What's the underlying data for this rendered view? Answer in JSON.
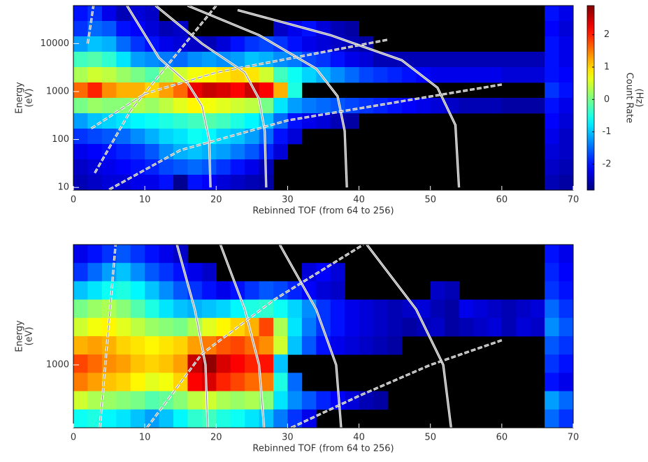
{
  "chart_data": [
    {
      "type": "heatmap",
      "xlabel": "Rebinned TOF (from 64 to 256)",
      "ylabel": [
        "Energy",
        "(eV)"
      ],
      "xlim": [
        0,
        70
      ],
      "xticks": [
        0,
        10,
        20,
        30,
        40,
        50,
        60,
        70
      ],
      "ylim": [
        8.8,
        62000
      ],
      "yticks": [
        10,
        100,
        1000,
        10000
      ],
      "ylog": true,
      "colorbar": {
        "label": [
          "Count Rate",
          "(Hz)"
        ],
        "lim": [
          -2.8,
          2.9
        ],
        "ticks": [
          -2,
          -1,
          0,
          1,
          2
        ]
      },
      "z": [
        [
          -2,
          -1.8,
          -2.2,
          -2.5,
          -2.3,
          -2.4,
          null,
          null,
          null,
          null,
          null,
          null,
          null,
          null,
          null,
          null,
          null,
          null,
          null,
          null,
          null,
          null,
          null,
          null,
          null,
          null,
          null,
          null,
          null,
          null,
          null,
          null,
          null,
          -2,
          -2.2
        ],
        [
          -1.8,
          -1.5,
          -1.6,
          -2,
          -2.1,
          -2.3,
          -2.5,
          -2.4,
          null,
          null,
          null,
          null,
          null,
          null,
          -2.4,
          -2.2,
          -2,
          -2.3,
          -2.5,
          -2.6,
          null,
          null,
          null,
          null,
          null,
          null,
          null,
          null,
          null,
          null,
          null,
          null,
          null,
          -2.1,
          -2.3
        ],
        [
          -1.2,
          -1,
          -1.1,
          -1.5,
          -1.8,
          -2,
          -2.2,
          -2.3,
          -2.4,
          -2.5,
          -2.3,
          -2,
          -1.8,
          -1.7,
          -1.8,
          -2,
          -2.2,
          -2.3,
          -2.4,
          -2.5,
          -2.6,
          null,
          null,
          null,
          null,
          null,
          null,
          null,
          null,
          null,
          null,
          null,
          null,
          -2,
          -2.2
        ],
        [
          -0.3,
          -0.2,
          -0.4,
          -0.8,
          -1.2,
          -1.3,
          -1.4,
          -1.5,
          -1.3,
          -1.2,
          -1.3,
          -1.2,
          -1,
          -1.1,
          -1.3,
          -1.4,
          -1.7,
          -1.8,
          -2,
          -2.2,
          -2.3,
          -2.5,
          -2.5,
          -2.5,
          -2.5,
          -2.5,
          -2.5,
          -2.5,
          -2.5,
          -2.5,
          -2.5,
          -2.5,
          -2.5,
          -2,
          -2.2
        ],
        [
          0.3,
          0.5,
          0.4,
          0.2,
          0,
          -0.2,
          0.2,
          0.5,
          0.7,
          0.8,
          0.9,
          1,
          0.9,
          0.5,
          -0.3,
          -0.6,
          -0.9,
          -1.1,
          -1.3,
          -1.5,
          -1.7,
          -1.8,
          -1.9,
          -2,
          -2.1,
          -2.2,
          -2.2,
          -2.2,
          -2.2,
          -2.2,
          -2.3,
          -2.3,
          -2.3,
          -2,
          -2.1
        ],
        [
          1.6,
          2,
          1.4,
          1.2,
          1.2,
          1,
          1.3,
          1.6,
          2.3,
          2.5,
          2.4,
          2.2,
          2.5,
          2.2,
          1.2,
          -0.5,
          null,
          null,
          null,
          null,
          null,
          null,
          null,
          null,
          null,
          null,
          null,
          null,
          null,
          null,
          null,
          null,
          null,
          -1.8,
          -2
        ],
        [
          0,
          0.2,
          0.1,
          0.1,
          0.3,
          0.2,
          0.4,
          0.6,
          0.8,
          0.7,
          0.6,
          0.5,
          0.4,
          0,
          -0.8,
          -1.2,
          -1.4,
          -1.5,
          -1.6,
          -1.7,
          -1.8,
          -1.9,
          -2,
          -2.1,
          -2.2,
          -2.3,
          -2.4,
          -2.5,
          -2.5,
          -2.5,
          -2.6,
          -2.6,
          -2.6,
          -2,
          -2.2
        ],
        [
          -1.2,
          -1,
          -0.9,
          -0.8,
          -0.7,
          -0.6,
          -0.5,
          -0.4,
          -0.3,
          -0.2,
          -0.3,
          -0.5,
          -0.7,
          -1,
          -1.5,
          -2,
          -2.2,
          -2.3,
          -2.5,
          -2.6,
          null,
          null,
          null,
          null,
          null,
          null,
          null,
          null,
          null,
          null,
          null,
          null,
          null,
          -2.1,
          -2.3
        ],
        [
          -1.8,
          -1.7,
          -1.6,
          -1.5,
          -1.3,
          -1.1,
          -0.9,
          -0.8,
          -0.6,
          -0.7,
          -0.9,
          -1,
          -1.2,
          -1.5,
          -2,
          -2.3,
          null,
          null,
          null,
          null,
          null,
          null,
          null,
          null,
          null,
          null,
          null,
          null,
          null,
          null,
          null,
          null,
          null,
          -2.2,
          -2.4
        ],
        [
          -2.2,
          -2.1,
          -2,
          -1.9,
          -1.8,
          -1.6,
          -1.3,
          -1.1,
          -1,
          -1.1,
          -1.2,
          -1.4,
          -1.6,
          -1.9,
          -2.3,
          null,
          null,
          null,
          null,
          null,
          null,
          null,
          null,
          null,
          null,
          null,
          null,
          null,
          null,
          null,
          null,
          null,
          null,
          -2.3,
          -2.4
        ],
        [
          -2.4,
          -2.3,
          -2.2,
          -2.1,
          -2,
          -1.9,
          -1.7,
          -1.6,
          -1.5,
          -1.6,
          -1.8,
          -2,
          -2.2,
          -2.5,
          null,
          null,
          null,
          null,
          null,
          null,
          null,
          null,
          null,
          null,
          null,
          null,
          null,
          null,
          null,
          null,
          null,
          null,
          null,
          -2.4,
          -2.5
        ],
        [
          -2.5,
          -2.4,
          -2.3,
          -2.3,
          -2.2,
          -2.2,
          -2,
          -2.7,
          -2,
          -2.1,
          -2.3,
          -2.4,
          -2.5,
          -2.6,
          null,
          null,
          null,
          null,
          null,
          null,
          null,
          null,
          null,
          null,
          null,
          null,
          null,
          null,
          null,
          null,
          null,
          null,
          null,
          -2.5,
          -2.6
        ]
      ],
      "curves": [
        {
          "style": "solid",
          "x": [
            7.5,
            12,
            16,
            18,
            19,
            19.2
          ],
          "y": [
            62000,
            5000,
            1500,
            500,
            100,
            10
          ]
        },
        {
          "style": "solid",
          "x": [
            11.5,
            18,
            24,
            26,
            26.8,
            27
          ],
          "y": [
            62000,
            10000,
            2500,
            700,
            150,
            10
          ]
        },
        {
          "style": "solid",
          "x": [
            16,
            26,
            34,
            37,
            38,
            38.3
          ],
          "y": [
            62000,
            15000,
            3000,
            800,
            150,
            10
          ]
        },
        {
          "style": "solid",
          "x": [
            23,
            36,
            46,
            51,
            53.5,
            54
          ],
          "y": [
            50000,
            15000,
            4500,
            1200,
            200,
            10
          ]
        },
        {
          "style": "dashed",
          "x": [
            2,
            2.5,
            2.8
          ],
          "y": [
            10000,
            30000,
            62000
          ]
        },
        {
          "style": "dashed",
          "x": [
            3,
            8,
            14,
            20
          ],
          "y": [
            20,
            400,
            5000,
            62000
          ]
        },
        {
          "style": "dashed",
          "x": [
            2.5,
            10,
            20,
            44
          ],
          "y": [
            170,
            900,
            2500,
            12000
          ]
        },
        {
          "style": "dashed",
          "x": [
            5,
            15,
            30,
            60
          ],
          "y": [
            9,
            60,
            250,
            1400
          ]
        }
      ]
    },
    {
      "type": "heatmap",
      "xlabel": "Rebinned TOF (from 64 to 256)",
      "ylabel": [
        "Energy",
        "(eV)"
      ],
      "xlim": [
        0,
        70
      ],
      "xticks": [
        0,
        10,
        20,
        30,
        40,
        50,
        60,
        70
      ],
      "ylim": [
        355,
        7250
      ],
      "yticks": [
        1000
      ],
      "ylog": true,
      "z": [
        [
          -2.2,
          -2,
          -1.8,
          -1.6,
          -1.8,
          -2,
          -2.2,
          -2.4,
          null,
          null,
          null,
          null,
          null,
          null,
          null,
          null,
          null,
          null,
          null,
          null,
          null,
          null,
          null,
          null,
          null,
          null,
          null,
          null,
          null,
          null,
          null,
          null,
          null,
          -2,
          -2.2
        ],
        [
          -1.8,
          -1.5,
          -1.2,
          -1,
          -1.3,
          -1.6,
          -1.8,
          -2,
          -2.2,
          -2.4,
          null,
          null,
          null,
          null,
          null,
          null,
          -2.3,
          -2.1,
          -2.3,
          null,
          null,
          null,
          null,
          null,
          null,
          null,
          null,
          null,
          null,
          null,
          null,
          null,
          null,
          -1.9,
          -2.1
        ],
        [
          -1,
          -0.8,
          -0.6,
          -0.5,
          -0.7,
          -1,
          -1.3,
          -1.6,
          -1.8,
          -2,
          -2.2,
          -2,
          -1.8,
          -1.6,
          -1.7,
          -1.9,
          -2.1,
          -2.3,
          -2.4,
          null,
          null,
          null,
          null,
          null,
          null,
          -2.4,
          -2.5,
          null,
          null,
          null,
          null,
          null,
          null,
          -1.8,
          -2
        ],
        [
          0,
          0.2,
          0.3,
          0.1,
          -0.2,
          -0.5,
          -0.8,
          -1,
          -1.1,
          -1,
          -0.9,
          -0.7,
          -0.5,
          -0.4,
          -0.6,
          -0.9,
          -1.3,
          -1.8,
          -2,
          -2.2,
          -2.3,
          -2.4,
          -2.5,
          -2.4,
          -2.3,
          -2.5,
          -2.6,
          -2.2,
          -2.3,
          -2.4,
          -2.5,
          -2.4,
          -2.3,
          -1.5,
          -1.8
        ],
        [
          0.5,
          0.7,
          0.8,
          0.6,
          0.4,
          0.2,
          0.1,
          0,
          0.3,
          0.6,
          0.8,
          1,
          1.2,
          1.8,
          0.3,
          -0.8,
          -1.4,
          -1.8,
          -2,
          -2.2,
          -2.3,
          -2.4,
          -2.5,
          -2.6,
          -2.5,
          -2.4,
          -2.6,
          -2.5,
          -2.4,
          -2.3,
          -2.5,
          -2.3,
          -2.4,
          -1.3,
          -1.6
        ],
        [
          1.2,
          1.3,
          1.2,
          1,
          0.9,
          0.8,
          0.9,
          1,
          1.3,
          1.5,
          1.7,
          1.8,
          1.6,
          1.4,
          0.5,
          -1,
          -1.6,
          -2,
          -2.2,
          -2.3,
          -2.4,
          -2.5,
          -2.6,
          null,
          null,
          null,
          null,
          null,
          null,
          null,
          null,
          null,
          null,
          -1.6,
          -1.8
        ],
        [
          1.8,
          1.6,
          1.4,
          1.3,
          1.1,
          1,
          1.1,
          1.3,
          2.5,
          2.8,
          2.4,
          2.2,
          2,
          2.1,
          -1,
          null,
          null,
          null,
          null,
          null,
          null,
          null,
          null,
          null,
          null,
          null,
          null,
          null,
          null,
          null,
          null,
          null,
          null,
          -1.8,
          -2
        ],
        [
          1.5,
          1.3,
          1.1,
          1,
          0.8,
          0.6,
          0.7,
          1,
          2.2,
          2.4,
          2,
          1.8,
          1.6,
          1.5,
          -0.5,
          -1.5,
          null,
          null,
          null,
          null,
          null,
          null,
          null,
          null,
          null,
          null,
          null,
          null,
          null,
          null,
          null,
          null,
          null,
          -2,
          -2.2
        ],
        [
          0.5,
          0.3,
          0.2,
          0.1,
          0,
          -0.2,
          -0.1,
          0.1,
          0.4,
          0.5,
          0.3,
          0.2,
          0.3,
          0.1,
          -0.8,
          -1.3,
          -1.6,
          -1.9,
          -2.1,
          -2.3,
          -2.5,
          -2.6,
          null,
          null,
          null,
          null,
          null,
          null,
          null,
          null,
          null,
          null,
          null,
          -1.2,
          -1.5
        ],
        [
          -0.6,
          -0.5,
          -0.7,
          -0.8,
          -1,
          -1.2,
          -1,
          -0.7,
          -0.4,
          -0.3,
          -0.5,
          -0.6,
          -0.8,
          -1,
          -1.4,
          -1.8,
          -2.2,
          null,
          null,
          null,
          null,
          null,
          null,
          null,
          null,
          null,
          null,
          null,
          null,
          null,
          null,
          null,
          null,
          -1.5,
          -1.8
        ]
      ],
      "curves": [
        {
          "style": "solid",
          "x": [
            14.5,
            17,
            18.5,
            18.8
          ],
          "y": [
            7250,
            2500,
            1000,
            355
          ]
        },
        {
          "style": "solid",
          "x": [
            20.6,
            24,
            26,
            26.7
          ],
          "y": [
            7250,
            2500,
            1000,
            355
          ]
        },
        {
          "style": "solid",
          "x": [
            28.9,
            34,
            36.8,
            37.5
          ],
          "y": [
            7250,
            2500,
            1000,
            355
          ]
        },
        {
          "style": "solid",
          "x": [
            41.1,
            48,
            51.8,
            52.9
          ],
          "y": [
            7250,
            2500,
            1000,
            355
          ]
        },
        {
          "style": "dashed",
          "x": [
            3.7,
            4.8,
            5.9
          ],
          "y": [
            355,
            1600,
            7250
          ]
        },
        {
          "style": "dashed",
          "x": [
            10.3,
            18,
            28,
            40.6
          ],
          "y": [
            355,
            1200,
            2900,
            7250
          ]
        },
        {
          "style": "dashed",
          "x": [
            30.5,
            40,
            50,
            60
          ],
          "y": [
            355,
            600,
            1000,
            1500
          ]
        }
      ]
    }
  ]
}
